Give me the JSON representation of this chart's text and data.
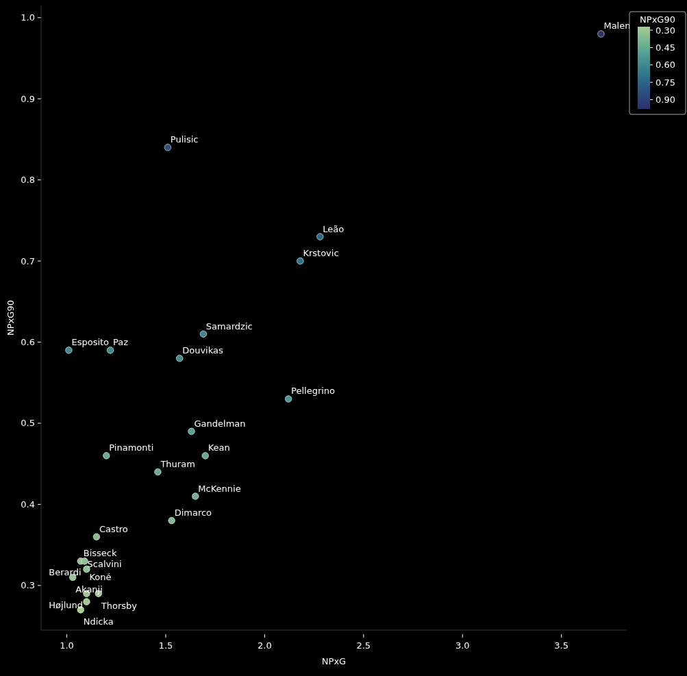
{
  "chart_data": {
    "type": "scatter",
    "xlabel": "NPxG",
    "ylabel": "NPxG90",
    "clabel": "NPxG90",
    "grid": false,
    "marker": "circle",
    "xlim": [
      0.87,
      3.83
    ],
    "ylim": [
      0.245,
      1.015
    ],
    "xticks": [
      {
        "value": 1,
        "label": "1.0"
      },
      {
        "value": 1.5,
        "label": "1.5"
      },
      {
        "value": 2,
        "label": "2.0"
      },
      {
        "value": 2.5,
        "label": "2.5"
      },
      {
        "value": 3,
        "label": "3.0"
      },
      {
        "value": 3.5,
        "label": "3.5"
      }
    ],
    "yticks": [
      {
        "value": 0.3,
        "label": "0.3"
      },
      {
        "value": 0.4,
        "label": "0.4"
      },
      {
        "value": 0.5,
        "label": "0.5"
      },
      {
        "value": 0.6,
        "label": "0.6"
      },
      {
        "value": 0.7,
        "label": "0.7"
      },
      {
        "value": 0.8,
        "label": "0.8"
      },
      {
        "value": 0.9,
        "label": "0.9"
      },
      {
        "value": 1,
        "label": "1.0"
      }
    ],
    "clim": [
      0.27,
      0.98
    ],
    "cticks": [
      {
        "value": 0.3,
        "label": "0.30"
      },
      {
        "value": 0.45,
        "label": "0.45"
      },
      {
        "value": 0.6,
        "label": "0.60"
      },
      {
        "value": 0.75,
        "label": "0.75"
      },
      {
        "value": 0.9,
        "label": "0.90"
      }
    ],
    "x": [
      3.7,
      1.51,
      2.28,
      2.18,
      1.69,
      1.01,
      1.22,
      1.57,
      2.12,
      1.63,
      1.2,
      1.7,
      1.46,
      1.65,
      1.53,
      1.15,
      1.07,
      1.09,
      1.1,
      1.03,
      1.1,
      1.16,
      1.1,
      1.07
    ],
    "values": [
      0.98,
      0.84,
      0.73,
      0.7,
      0.61,
      0.59,
      0.59,
      0.58,
      0.53,
      0.49,
      0.46,
      0.46,
      0.44,
      0.41,
      0.38,
      0.36,
      0.33,
      0.33,
      0.32,
      0.31,
      0.29,
      0.29,
      0.28,
      0.27
    ],
    "cvalues": [
      0.98,
      0.84,
      0.73,
      0.7,
      0.61,
      0.59,
      0.59,
      0.58,
      0.53,
      0.49,
      0.46,
      0.46,
      0.44,
      0.41,
      0.38,
      0.36,
      0.33,
      0.33,
      0.32,
      0.31,
      0.29,
      0.29,
      0.28,
      0.27
    ],
    "annotations": [
      {
        "text": "Malen",
        "x": 3.7,
        "y": 0.98
      },
      {
        "text": "Pulisic",
        "x": 1.51,
        "y": 0.84
      },
      {
        "text": "Leão",
        "x": 2.28,
        "y": 0.73
      },
      {
        "text": "Krstovic",
        "x": 2.18,
        "y": 0.7
      },
      {
        "text": "Samardzic",
        "x": 1.69,
        "y": 0.61
      },
      {
        "text": "Esposito",
        "x": 1.01,
        "y": 0.59
      },
      {
        "text": "Paz",
        "x": 1.22,
        "y": 0.59
      },
      {
        "text": "Douvikas",
        "x": 1.57,
        "y": 0.58
      },
      {
        "text": "Pellegrino",
        "x": 2.12,
        "y": 0.53
      },
      {
        "text": "Gandelman",
        "x": 1.63,
        "y": 0.49
      },
      {
        "text": "Pinamonti",
        "x": 1.2,
        "y": 0.46
      },
      {
        "text": "Kean",
        "x": 1.7,
        "y": 0.46
      },
      {
        "text": "Thuram",
        "x": 1.46,
        "y": 0.44
      },
      {
        "text": "McKennie",
        "x": 1.65,
        "y": 0.41
      },
      {
        "text": "Dimarco",
        "x": 1.53,
        "y": 0.38
      },
      {
        "text": "Castro",
        "x": 1.15,
        "y": 0.36
      },
      {
        "text": "Bisseck",
        "x": 1.07,
        "y": 0.33
      },
      {
        "text": "Scalvini",
        "x": 1.09,
        "y": 0.33
      },
      {
        "text": "Berardi",
        "x": 1.1,
        "y": 0.32
      },
      {
        "text": "Akanji",
        "x": 1.03,
        "y": 0.31
      },
      {
        "text": "Koné",
        "x": 1.1,
        "y": 0.29
      },
      {
        "text": "Thorsby",
        "x": 1.16,
        "y": 0.29
      },
      {
        "text": "Højlund",
        "x": 1.1,
        "y": 0.28
      },
      {
        "text": "Ndicka",
        "x": 1.07,
        "y": 0.27
      }
    ]
  }
}
